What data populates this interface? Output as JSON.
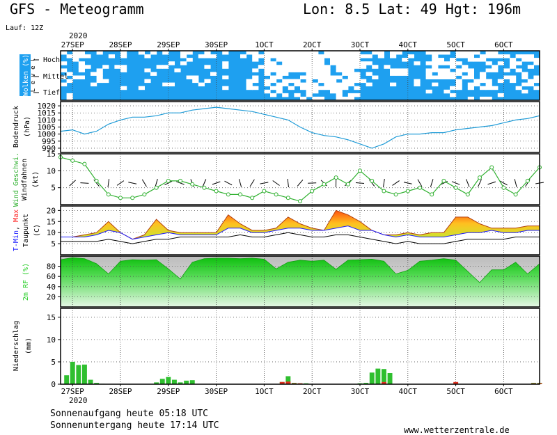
{
  "header": {
    "title": "GFS - Meteogramm",
    "location": "Lon: 8.5 Lat: 49 Hgt: 196m",
    "run": "Lauf: 12Z",
    "year_top": "2020",
    "year_bottom": "2020"
  },
  "dates": [
    "27SEP",
    "28SEP",
    "29SEP",
    "30SEP",
    "1OCT",
    "2OCT",
    "3OCT",
    "4OCT",
    "5OCT",
    "6OCT"
  ],
  "footer": {
    "sunrise": "Sonnenaufgang heute 05:18 UTC",
    "sunset": "Sonnenuntergang heute 17:14 UTC",
    "website": "www.wetterzentrale.de"
  },
  "colors": {
    "cloud": "#1ea0f0",
    "pressure": "#1e9bd7",
    "wind": "#2fb02f",
    "tmin": "#1a1aff",
    "tmax": "#ff2020",
    "rh": "#22cc22",
    "precip_green": "#2fbf2f",
    "precip_red": "#e03020"
  },
  "chart_data": [
    {
      "type": "heatmap",
      "name": "clouds",
      "ylabel": "Wolken (%)",
      "level_axis_label": "L e v e l",
      "levels": [
        "Hoch",
        "Mittel",
        "Tief"
      ],
      "note": "cloud cover shown as blue blocks per level over the forecast period"
    },
    {
      "type": "line",
      "ylabel": "Bodendruck",
      "yunit": "(hPa)",
      "ylim": [
        987,
        1023
      ],
      "yticks": [
        990,
        995,
        1000,
        1005,
        1010,
        1015,
        1020
      ],
      "x": [
        0,
        6,
        12,
        18,
        24,
        30,
        36,
        42,
        48,
        54,
        60,
        66,
        72,
        78,
        84,
        90,
        96,
        102,
        108,
        114,
        120,
        126,
        132,
        138,
        144,
        150,
        156,
        162,
        168,
        174,
        180,
        186,
        192,
        198,
        204,
        210,
        216,
        222,
        228,
        234,
        240
      ],
      "values": [
        1002,
        1003,
        1000,
        1002,
        1007,
        1010,
        1012,
        1012,
        1013,
        1015,
        1015,
        1017,
        1018,
        1019,
        1018,
        1017,
        1016,
        1014,
        1012,
        1010,
        1005,
        1001,
        999,
        998,
        996,
        993,
        990,
        993,
        998,
        1000,
        1000,
        1001,
        1001,
        1003,
        1004,
        1005,
        1006,
        1008,
        1010,
        1011,
        1013
      ]
    },
    {
      "type": "line",
      "ylabel": "Wind Geschwi.",
      "ylabel2": "Windfahnen",
      "yunit": "(kt)",
      "ylim": [
        0,
        15
      ],
      "yticks": [
        5,
        10,
        15
      ],
      "x": [
        0,
        6,
        12,
        18,
        24,
        30,
        36,
        42,
        48,
        54,
        60,
        66,
        72,
        78,
        84,
        90,
        96,
        102,
        108,
        114,
        120,
        126,
        132,
        138,
        144,
        150,
        156,
        162,
        168,
        174,
        180,
        186,
        192,
        198,
        204,
        210,
        216,
        222,
        228,
        234,
        240
      ],
      "values": [
        14,
        13,
        12,
        7,
        3,
        2,
        2,
        3,
        5,
        7,
        7,
        6,
        5,
        4,
        3,
        3,
        2,
        4,
        3,
        2,
        1,
        4,
        6,
        8,
        6,
        10,
        7,
        4,
        3,
        4,
        5,
        3,
        7,
        5,
        3,
        8,
        11,
        5,
        3,
        7,
        11
      ]
    },
    {
      "type": "area",
      "ylabel": "T-Min, Max",
      "ylabel2": "Taupunkt",
      "yunit": "(C)",
      "ylim": [
        0,
        22
      ],
      "yticks": [
        5,
        10,
        15,
        20
      ],
      "x": [
        0,
        6,
        12,
        18,
        24,
        30,
        36,
        42,
        48,
        54,
        60,
        66,
        72,
        78,
        84,
        90,
        96,
        102,
        108,
        114,
        120,
        126,
        132,
        138,
        144,
        150,
        156,
        162,
        168,
        174,
        180,
        186,
        192,
        198,
        204,
        210,
        216,
        222,
        228,
        234,
        240
      ],
      "series": [
        {
          "name": "T-Min",
          "values": [
            8,
            8,
            8,
            9,
            11,
            10,
            7,
            8,
            9,
            10,
            9,
            9,
            9,
            9,
            12,
            12,
            10,
            10,
            11,
            12,
            12,
            11,
            11,
            12,
            13,
            11,
            11,
            9,
            8,
            9,
            8,
            8,
            8,
            9,
            10,
            10,
            11,
            10,
            10,
            11,
            11
          ]
        },
        {
          "name": "Max",
          "values": [
            8,
            8,
            9,
            10,
            15,
            10,
            7,
            9,
            16,
            11,
            10,
            10,
            10,
            10,
            18,
            14,
            11,
            11,
            12,
            17,
            14,
            12,
            11,
            20,
            18,
            15,
            11,
            9,
            9,
            10,
            9,
            10,
            10,
            17,
            17,
            14,
            12,
            12,
            12,
            13,
            13
          ]
        },
        {
          "name": "Taupunkt",
          "values": [
            6,
            6,
            6,
            6,
            7,
            6,
            5,
            6,
            7,
            7,
            8,
            8,
            8,
            8,
            8,
            9,
            8,
            8,
            9,
            10,
            9,
            8,
            8,
            9,
            9,
            8,
            7,
            6,
            5,
            6,
            5,
            5,
            5,
            6,
            7,
            7,
            7,
            7,
            8,
            8,
            8
          ]
        }
      ]
    },
    {
      "type": "area",
      "ylabel": "2m RF (%)",
      "ylim": [
        0,
        100
      ],
      "yticks": [
        20,
        40,
        60,
        80
      ],
      "x": [
        0,
        6,
        12,
        18,
        24,
        30,
        36,
        42,
        48,
        54,
        60,
        66,
        72,
        78,
        84,
        90,
        96,
        102,
        108,
        114,
        120,
        126,
        132,
        138,
        144,
        150,
        156,
        162,
        168,
        174,
        180,
        186,
        192,
        198,
        204,
        210,
        216,
        222,
        228,
        234,
        240
      ],
      "values": [
        93,
        97,
        95,
        85,
        65,
        90,
        93,
        92,
        93,
        75,
        55,
        88,
        95,
        96,
        96,
        95,
        96,
        94,
        75,
        88,
        92,
        90,
        92,
        74,
        92,
        93,
        94,
        90,
        65,
        72,
        90,
        92,
        95,
        92,
        70,
        48,
        73,
        73,
        88,
        65,
        85
      ]
    },
    {
      "type": "bar",
      "ylabel": "Niederschlag",
      "yunit": "(mm)",
      "ylim": [
        0,
        17
      ],
      "yticks": [
        0,
        5,
        10,
        15
      ],
      "x": [
        3,
        6,
        9,
        12,
        15,
        18,
        21,
        48,
        51,
        54,
        57,
        60,
        63,
        66,
        111,
        114,
        117,
        120,
        123,
        150,
        153,
        156,
        159,
        162,
        165,
        198,
        237,
        240
      ],
      "series": [
        {
          "name": "",
          "values": [
            2,
            5,
            4.3,
            4.4,
            1,
            0.3,
            0.1,
            0.4,
            1.2,
            1.6,
            1,
            0.4,
            0.8,
            0.9,
            0.5,
            1.8,
            0.3,
            0.2,
            0.2,
            0.2,
            0.3,
            2.6,
            3.5,
            3.4,
            2.5,
            0.2,
            0.3,
            0.3
          ]
        },
        {
          "name": "",
          "values": [
            0,
            0,
            0,
            0,
            0,
            0,
            0,
            0,
            0,
            0,
            0,
            0,
            0,
            0,
            0.5,
            0.6,
            0.2,
            0.2,
            0,
            0,
            0,
            0,
            0,
            0.5,
            0,
            0.5,
            0.2,
            0.2
          ]
        }
      ]
    }
  ]
}
